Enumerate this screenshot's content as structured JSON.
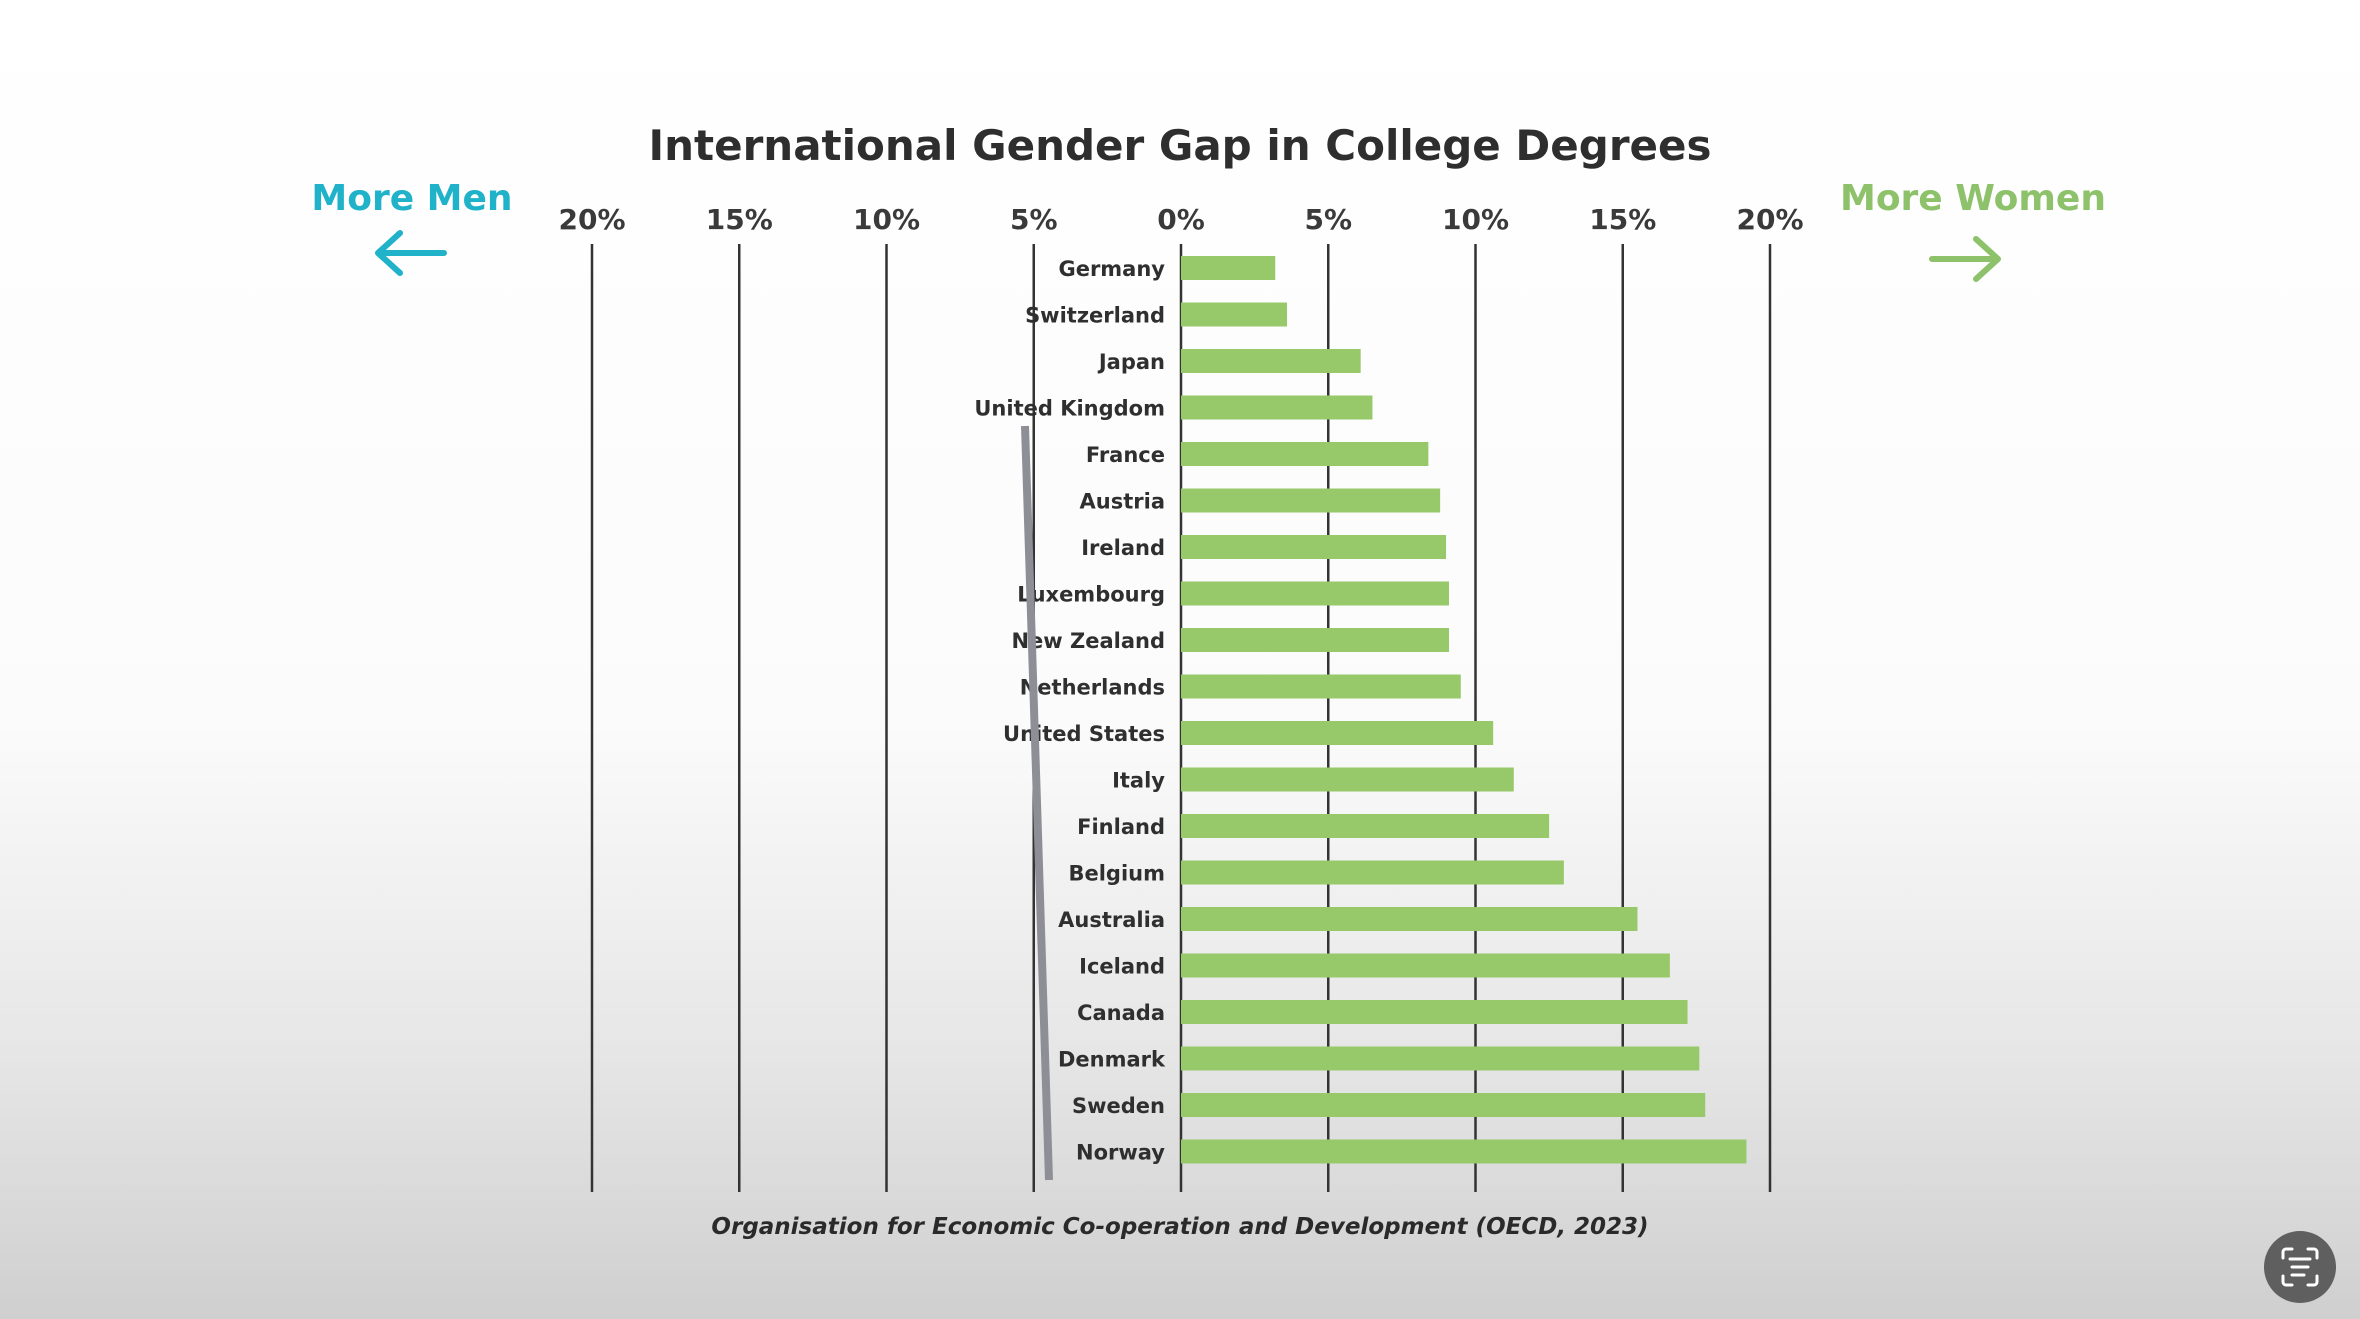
{
  "chart_data": {
    "type": "bar",
    "orientation": "horizontal",
    "title": "International Gender Gap in College Degrees",
    "left_label": "More Men",
    "right_label": "More Women",
    "source": "Organisation for Economic Co-operation and Development (OECD, 2023)",
    "x_ticks_left": [
      "20%",
      "15%",
      "10%",
      "5%"
    ],
    "x_tick_values_left": [
      -20,
      -15,
      -10,
      -5
    ],
    "x_ticks_right": [
      "0%",
      "5%",
      "10%",
      "15%",
      "20%"
    ],
    "x_tick_values_right": [
      0,
      5,
      10,
      15,
      20
    ],
    "xlim": [
      -20,
      20
    ],
    "unit": "%",
    "categories": [
      "Germany",
      "Switzerland",
      "Japan",
      "United Kingdom",
      "France",
      "Austria",
      "Ireland",
      "Luxembourg",
      "New Zealand",
      "Netherlands",
      "United States",
      "Italy",
      "Finland",
      "Belgium",
      "Australia",
      "Iceland",
      "Canada",
      "Denmark",
      "Sweden",
      "Norway"
    ],
    "values": [
      3.2,
      3.6,
      6.1,
      6.5,
      8.4,
      8.8,
      9.0,
      9.1,
      9.1,
      9.5,
      10.6,
      11.3,
      12.5,
      13.0,
      15.5,
      16.6,
      17.2,
      17.6,
      17.8,
      19.2
    ],
    "colors": {
      "bar": "#97c96a",
      "men": "#1fb2c9",
      "women": "#8dc26b",
      "grid": "#333333"
    }
  },
  "overlay": {
    "icon": "text-scan-icon"
  }
}
